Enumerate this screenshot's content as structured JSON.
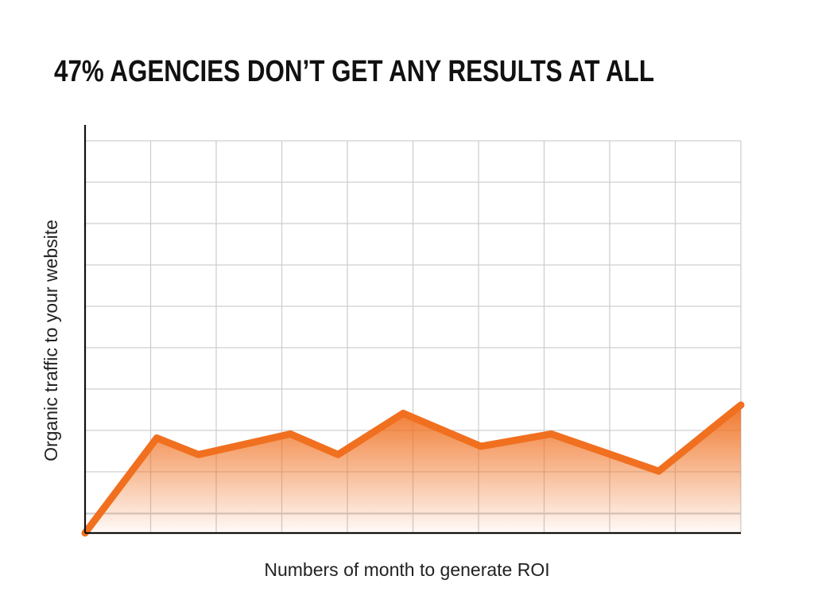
{
  "chart_data": {
    "type": "area",
    "title": "47% AGENCIES DON’T GET ANY RESULTS AT ALL",
    "x_label": "Numbers of month to generate ROI",
    "y_label": "Organic traffic to your website",
    "x": [
      0,
      1.1,
      1.74,
      3.15,
      3.88,
      4.88,
      6.07,
      7.15,
      8.8,
      10.06
    ],
    "series": [
      {
        "color": "#f07020",
        "values": [
          0,
          2.3,
          1.9,
          2.4,
          1.9,
          2.9,
          2.1,
          2.4,
          1.5,
          3.1
        ]
      }
    ],
    "xlim": [
      0,
      10.06
    ],
    "ylim": [
      0,
      9.5
    ],
    "grid": true
  }
}
